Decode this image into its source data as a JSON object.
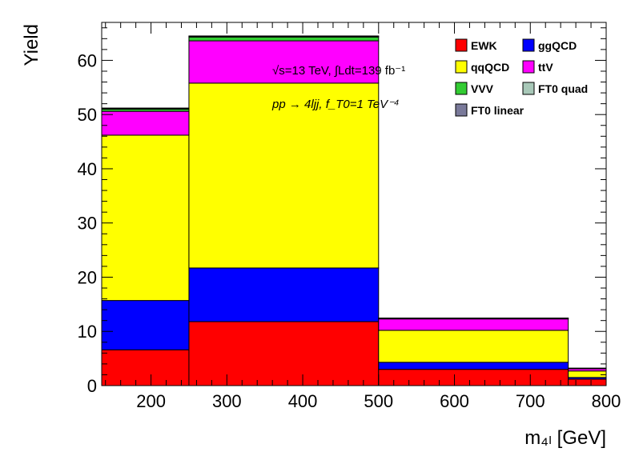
{
  "chart_data": {
    "type": "bar",
    "stacked": true,
    "histogram": true,
    "x_edges": [
      135,
      250,
      500,
      750,
      800
    ],
    "xlim": [
      135,
      800
    ],
    "ylim": [
      0,
      67
    ],
    "xlabel": "m₄ₗ [GeV]",
    "ylabel": "Yield",
    "x_ticks": [
      200,
      300,
      400,
      500,
      600,
      700,
      800
    ],
    "y_ticks": [
      0,
      10,
      20,
      30,
      40,
      50,
      60
    ],
    "legend_position": "top-right",
    "grid": false,
    "series": [
      {
        "name": "EWK",
        "color": "#ff0000",
        "values": [
          6.6,
          11.8,
          3.0,
          1.2
        ]
      },
      {
        "name": "ggQCD",
        "color": "#0000ff",
        "values": [
          9.1,
          9.9,
          1.3,
          0.3
        ]
      },
      {
        "name": "qqQCD",
        "color": "#ffff00",
        "values": [
          30.5,
          34.1,
          5.9,
          1.2
        ]
      },
      {
        "name": "ttV",
        "color": "#ff00ff",
        "values": [
          4.4,
          7.8,
          2.1,
          0.4
        ]
      },
      {
        "name": "VVV",
        "color": "#33cc33",
        "values": [
          0.4,
          0.7,
          0.1,
          0.05
        ]
      },
      {
        "name": "FT0 quad",
        "color": "#a8c8b8",
        "values": [
          0.15,
          0.15,
          0.05,
          0.05
        ]
      },
      {
        "name": "FT0 linear",
        "color": "#7a7a9a",
        "values": [
          0.05,
          0.05,
          0.02,
          0.02
        ]
      }
    ],
    "annotations": [
      "√s=13 TeV, ∫Ldt=139 fb⁻¹",
      "pp → 4ljj, f_T0=1 TeV⁻⁴"
    ]
  }
}
